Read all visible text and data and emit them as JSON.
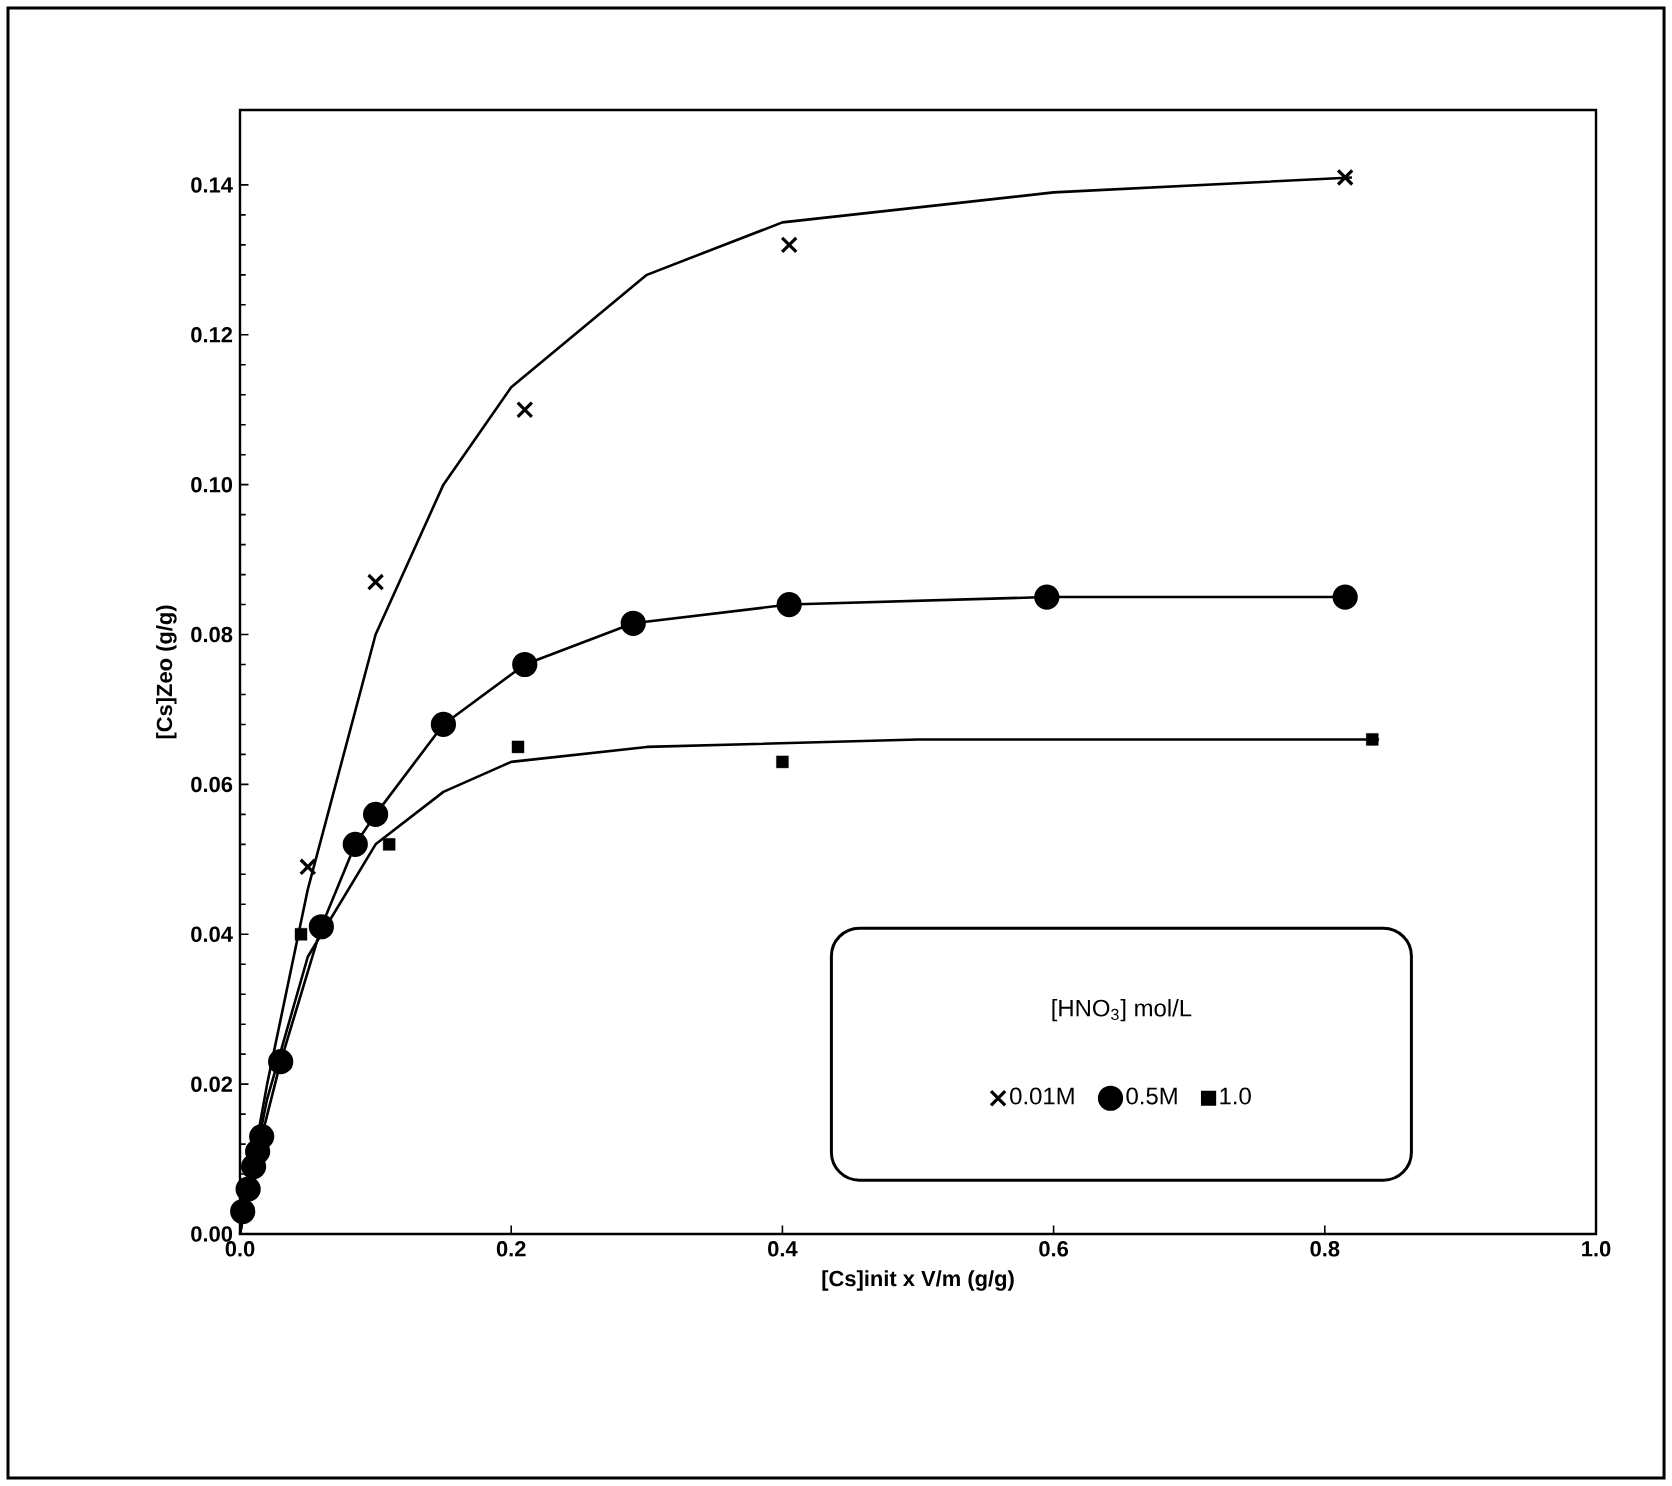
{
  "chart_data": {
    "type": "scatter",
    "xlabel": "[Cs]init x V/m (g/g)",
    "ylabel": "[Cs]Zeo (g/g)",
    "legend_title": "[HNO$_{3}$] mol/L",
    "xlim": [
      0,
      1.0
    ],
    "ylim": [
      0,
      0.15
    ],
    "xticks": [
      {
        "value": 0,
        "label": "0.0"
      },
      {
        "value": 0.2,
        "label": "0.2"
      },
      {
        "value": 0.4,
        "label": "0.4"
      },
      {
        "value": 0.6,
        "label": "0.6"
      },
      {
        "value": 0.8,
        "label": "0.8"
      },
      {
        "value": 1.0,
        "label": "1.0"
      }
    ],
    "yticks": [
      {
        "value": 0,
        "label": "0.00"
      },
      {
        "value": 0.02,
        "label": "0.02"
      },
      {
        "value": 0.04,
        "label": "0.04"
      },
      {
        "value": 0.06,
        "label": "0.06"
      },
      {
        "value": 0.08,
        "label": "0.08"
      },
      {
        "value": 0.1,
        "label": "0.10"
      },
      {
        "value": 0.12,
        "label": "0.12"
      },
      {
        "value": 0.14,
        "label": "0.14"
      }
    ],
    "grid": false,
    "legend": "bottom right",
    "series": [
      {
        "name": "0.01M",
        "marker": "cross",
        "color": "#000000",
        "x": [
          0.05,
          0.1,
          0.21,
          0.405,
          0.815
        ],
        "values": [
          0.049,
          0.087,
          0.11,
          0.132,
          0.141
        ]
      },
      {
        "name": "0.5M",
        "type": "line",
        "marker": "circle",
        "color": "#000000",
        "x": [
          0.002,
          0.006,
          0.01,
          0.013,
          0.016,
          0.03,
          0.06,
          0.085,
          0.1,
          0.15,
          0.21,
          0.29,
          0.405,
          0.595,
          0.815
        ],
        "values": [
          0.003,
          0.006,
          0.009,
          0.011,
          0.013,
          0.023,
          0.041,
          0.052,
          0.056,
          0.068,
          0.076,
          0.0815,
          0.084,
          0.085,
          0.085
        ]
      },
      {
        "name": "1.0",
        "marker": "square",
        "color": "#000000",
        "x": [
          0.045,
          0.11,
          0.205,
          0.4,
          0.835
        ],
        "values": [
          0.04,
          0.052,
          0.065,
          0.063,
          0.066
        ]
      },
      {
        "type": "line",
        "marker": "none",
        "color": "#000000",
        "x": [
          0,
          0.02,
          0.05,
          0.1,
          0.15,
          0.2,
          0.3,
          0.4,
          0.6,
          0.82
        ],
        "values": [
          0,
          0.02,
          0.046,
          0.08,
          0.1,
          0.113,
          0.128,
          0.135,
          0.139,
          0.141
        ]
      },
      {
        "type": "line",
        "marker": "none",
        "color": "#000000",
        "x": [
          0,
          0.02,
          0.05,
          0.1,
          0.15,
          0.2,
          0.3,
          0.5,
          0.84
        ],
        "values": [
          0,
          0.018,
          0.037,
          0.052,
          0.059,
          0.063,
          0.065,
          0.066,
          0.066
        ]
      }
    ]
  }
}
